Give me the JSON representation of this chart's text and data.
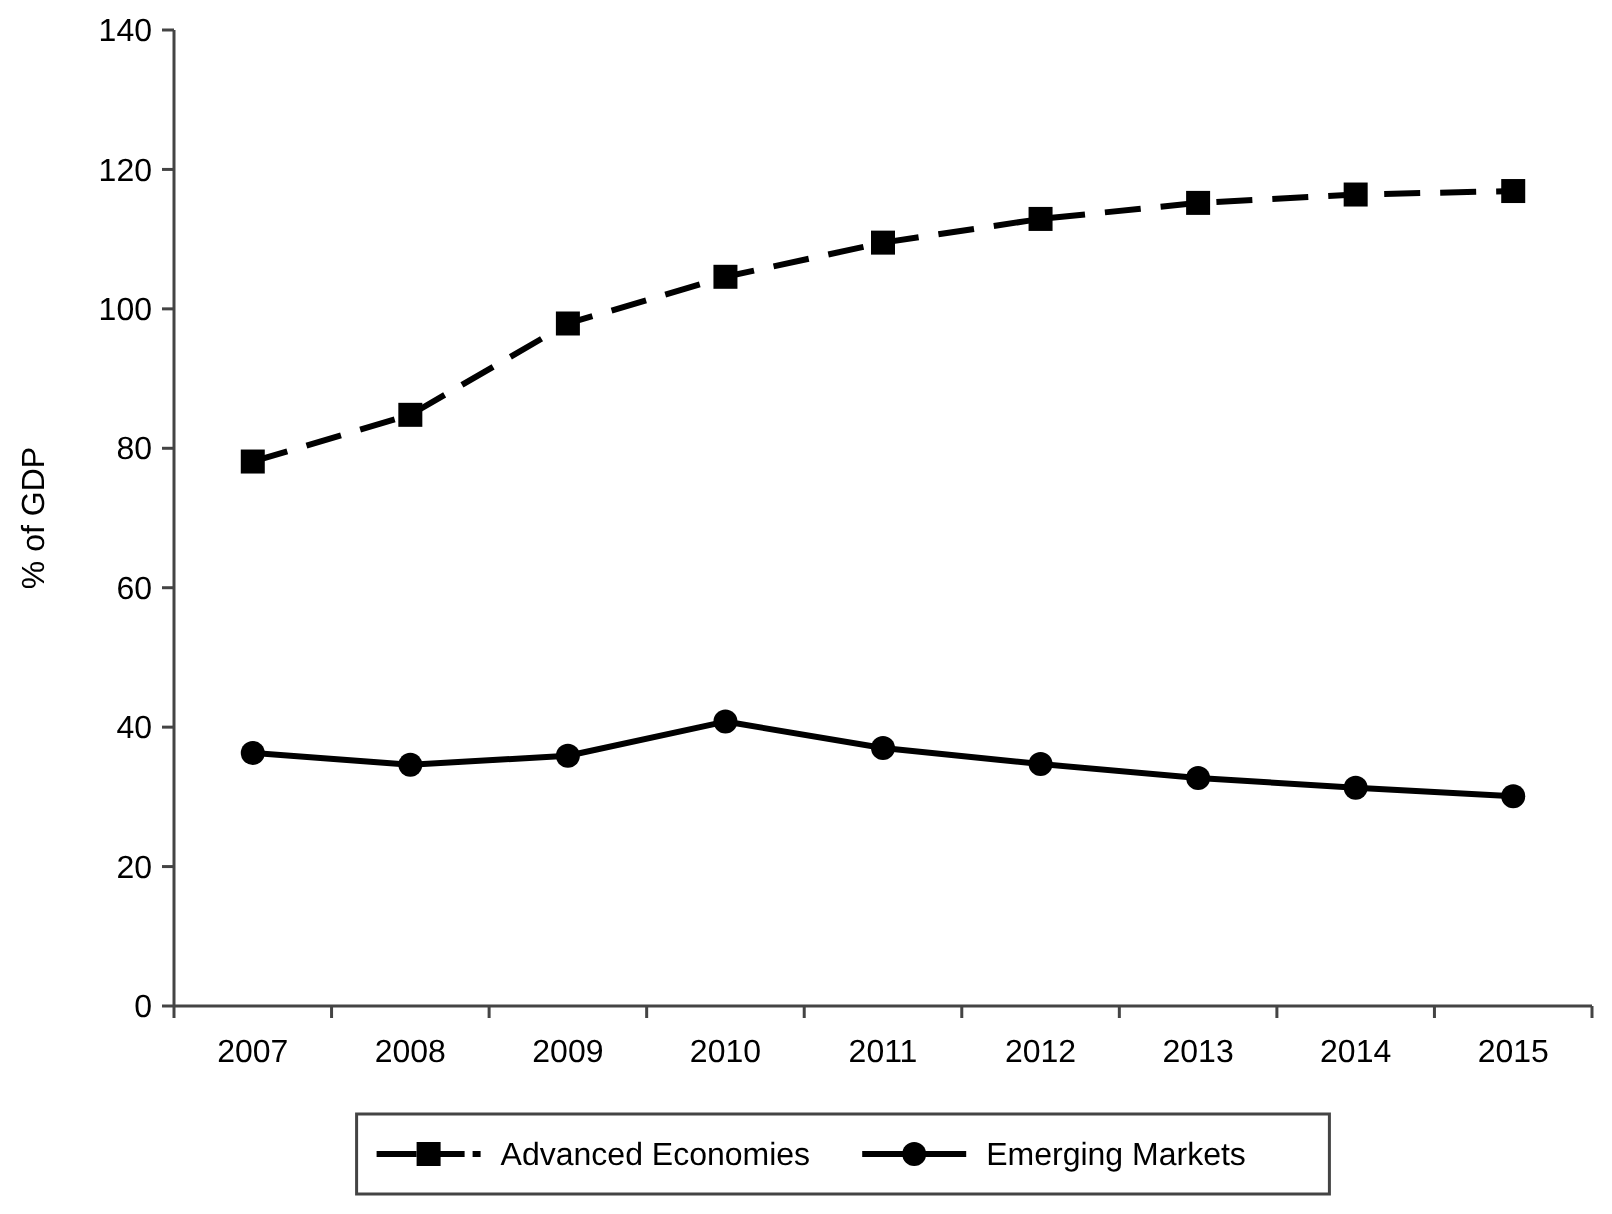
{
  "chart_data": {
    "type": "line",
    "ylabel": "% of GDP",
    "categories": [
      "2007",
      "2008",
      "2009",
      "2010",
      "2011",
      "2012",
      "2013",
      "2014",
      "2015"
    ],
    "series": [
      {
        "name": "Advanced Economies",
        "color": "#000000",
        "marker": "square",
        "line_style": "dashed",
        "values": [
          78.1,
          84.8,
          97.9,
          104.6,
          109.5,
          112.9,
          115.2,
          116.4,
          116.9
        ]
      },
      {
        "name": "Emerging Markets",
        "color": "#000000",
        "marker": "circle",
        "line_style": "solid",
        "values": [
          36.3,
          34.6,
          35.9,
          40.8,
          37.0,
          34.7,
          32.7,
          31.3,
          30.1
        ]
      }
    ],
    "ylim": [
      0,
      140
    ],
    "yticks": [
      0,
      20,
      40,
      60,
      80,
      100,
      120,
      140
    ],
    "grid": false,
    "legend": "bottom"
  }
}
